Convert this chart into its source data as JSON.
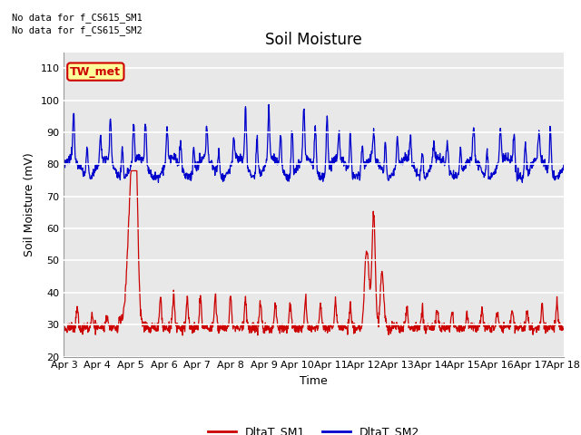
{
  "title": "Soil Moisture",
  "ylabel": "Soil Moisture (mV)",
  "xlabel": "Time",
  "ylim": [
    20,
    115
  ],
  "yticks": [
    20,
    30,
    40,
    50,
    60,
    70,
    80,
    90,
    100,
    110
  ],
  "x_labels": [
    "Apr 3",
    "Apr 4",
    "Apr 5",
    "Apr 6",
    "Apr 7",
    "Apr 8",
    "Apr 9",
    "Apr 10",
    "Apr 11",
    "Apr 12",
    "Apr 13",
    "Apr 14",
    "Apr 15",
    "Apr 16",
    "Apr 17",
    "Apr 18"
  ],
  "no_data_text1": "No data for f_CS615_SM1",
  "no_data_text2": "No data for f_CS615_SM2",
  "legend_label1": "DltaT_SM1",
  "legend_label2": "DltaT_SM2",
  "color1": "#CC0000",
  "color2": "#0000CC",
  "bg_color": "#E8E8E8",
  "annotation_text": "TW_met",
  "annotation_color": "#CC0000",
  "annotation_bg": "#FFFF99",
  "title_fontsize": 12,
  "label_fontsize": 9,
  "tick_fontsize": 8
}
